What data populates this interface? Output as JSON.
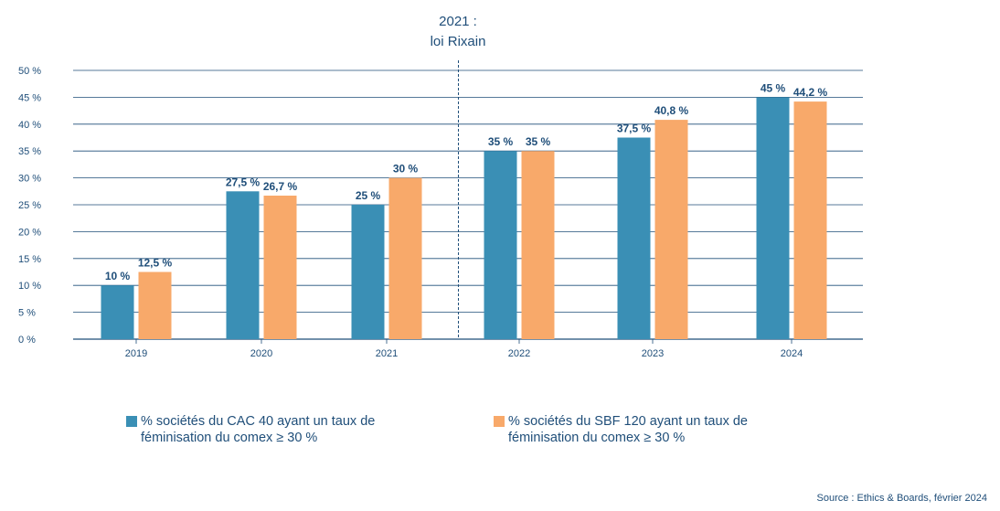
{
  "chart_data": {
    "type": "bar",
    "title": "2021 :",
    "subtitle": "loi Rixain",
    "categories": [
      "2019",
      "2020",
      "2021",
      "2022",
      "2023",
      "2024"
    ],
    "series": [
      {
        "name": "% sociétés du CAC 40 ayant un taux de féminisation du comex ≥ 30 %",
        "color": "#3a8fb5",
        "values": [
          10,
          27.5,
          25,
          35,
          37.5,
          45
        ],
        "labels": [
          "10 %",
          "27,5 %",
          "25 %",
          "35 %",
          "37,5 %",
          "45 %"
        ]
      },
      {
        "name": "% sociétés du SBF 120 ayant un taux de féminisation du comex ≥ 30 %",
        "color": "#f8a96a",
        "values": [
          12.5,
          26.7,
          30,
          35,
          40.8,
          44.2
        ],
        "labels": [
          "12,5 %",
          "26,7 %",
          "30 %",
          "35 %",
          "40,8 %",
          "44,2 %"
        ]
      }
    ],
    "yticks": [
      "0 %",
      "5 %",
      "10 %",
      "15 %",
      "20 %",
      "25 %",
      "30 %",
      "35 %",
      "40 %",
      "45 %",
      "50 %"
    ],
    "ylim": [
      0,
      50
    ],
    "grid": true,
    "legend": "bottom",
    "annotation_divider_after": "2021"
  },
  "source": "Source : Ethics & Boards, février 2024"
}
